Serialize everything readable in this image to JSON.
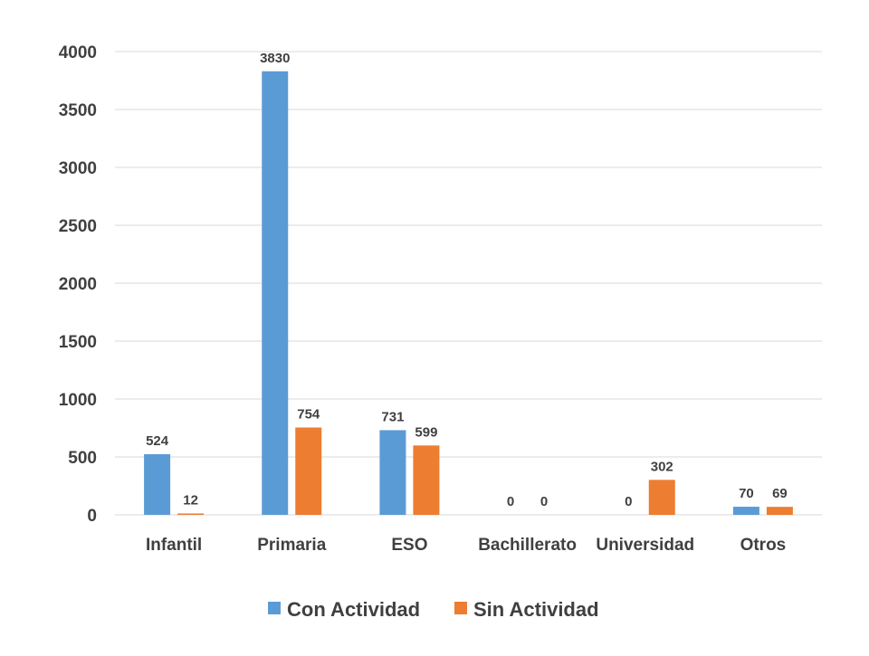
{
  "chart_data": {
    "type": "bar",
    "categories": [
      "Infantil",
      "Primaria",
      "ESO",
      "Bachillerato",
      "Universidad",
      "Otros"
    ],
    "series": [
      {
        "name": "Con Actividad",
        "color": "#5b9bd5",
        "values": [
          524,
          3830,
          731,
          0,
          0,
          70
        ]
      },
      {
        "name": "Sin Actividad",
        "color": "#ed7d31",
        "values": [
          12,
          754,
          599,
          0,
          302,
          69
        ]
      }
    ],
    "y_ticks": [
      "0",
      "500",
      "1000",
      "1500",
      "2000",
      "2500",
      "3000",
      "3500",
      "4000"
    ],
    "ylim": [
      0,
      4000
    ],
    "grid": true,
    "legend_position": "bottom",
    "data_labels": true
  }
}
